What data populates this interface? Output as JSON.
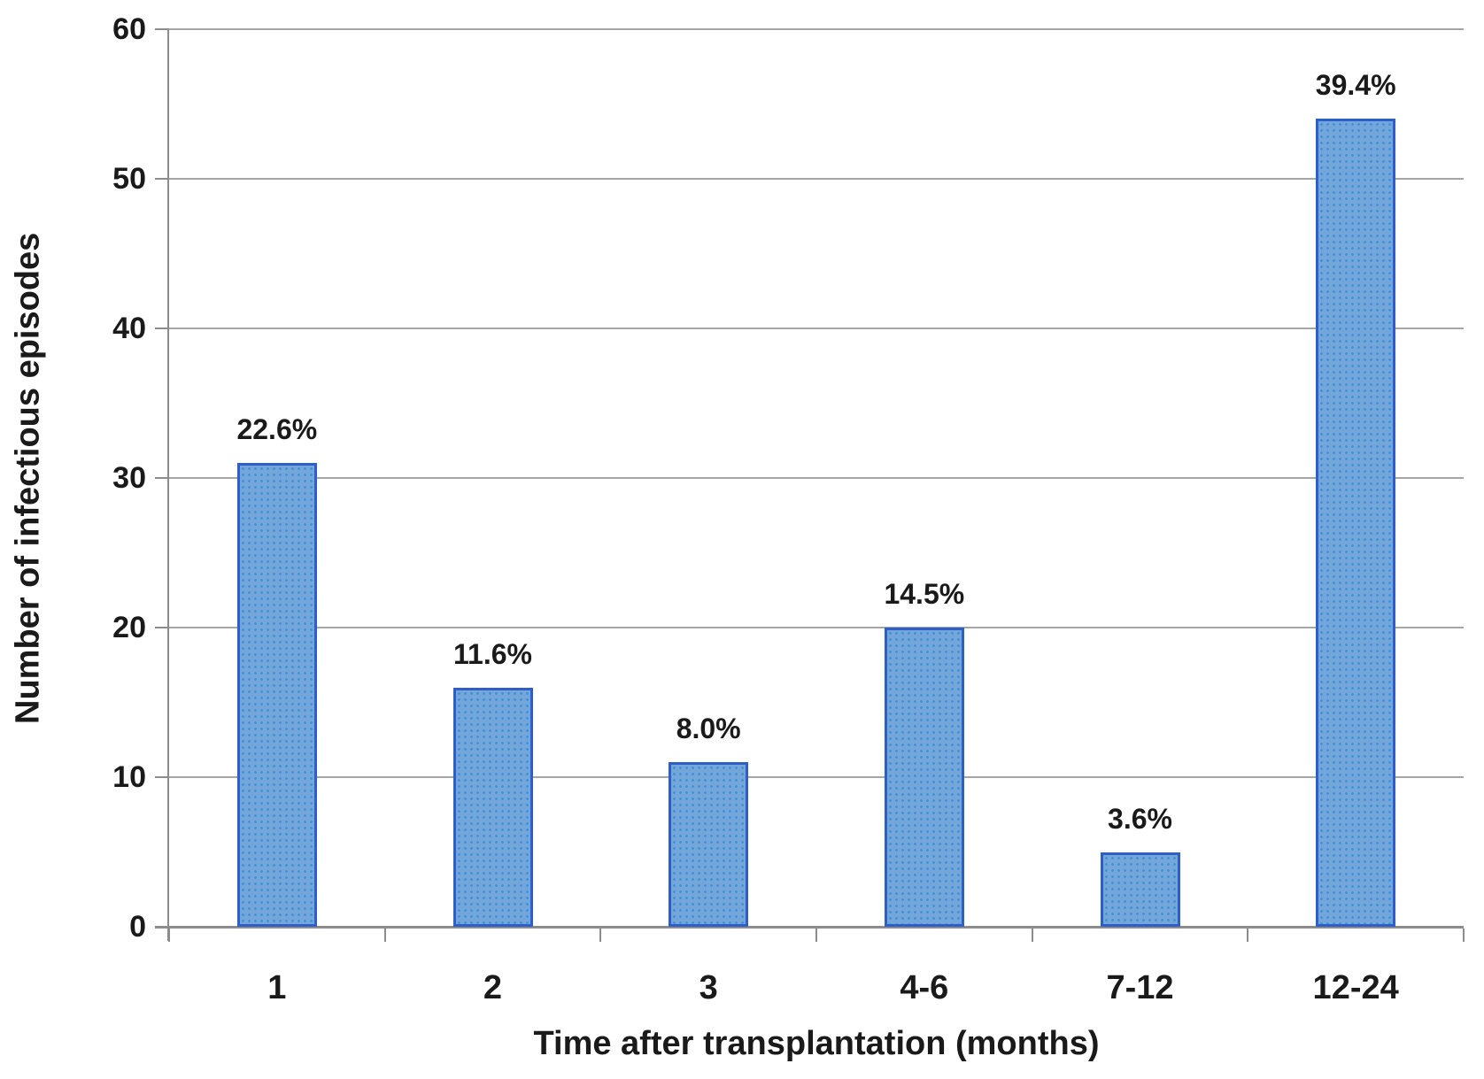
{
  "chart_data": {
    "type": "bar",
    "title": "",
    "xlabel": "Time after transplantation (months)",
    "ylabel": "Number of infectious episodes",
    "categories": [
      "1",
      "2",
      "3",
      "4-6",
      "7-12",
      "12-24"
    ],
    "values": [
      31,
      16,
      11,
      20,
      5,
      54
    ],
    "bar_labels": [
      "22.6%",
      "11.6%",
      "8.0%",
      "14.5%",
      "3.6%",
      "39.4%"
    ],
    "ylim": [
      0,
      60
    ],
    "yticks": [
      0,
      10,
      20,
      30,
      40,
      50,
      60
    ],
    "grid": true,
    "legend": "none",
    "colors": {
      "bar_fill": "#74a6d9",
      "bar_dots": "#3f93dd",
      "bar_border": "#2e5fc8",
      "gridline": "#a6a6a6",
      "axis": "#8c8c8c",
      "text": "#1a1a1a"
    }
  }
}
